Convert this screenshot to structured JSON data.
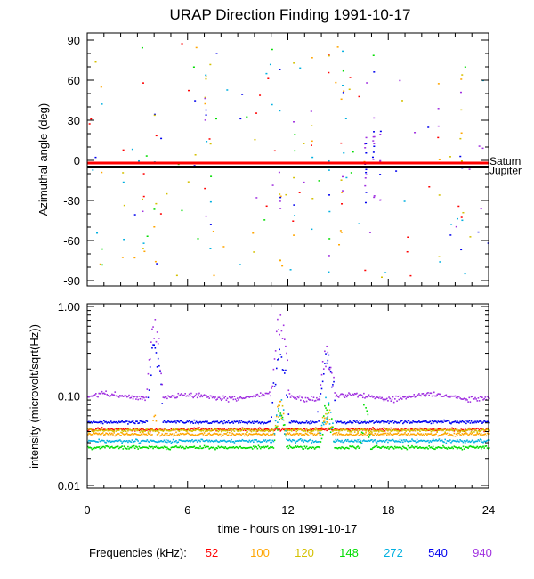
{
  "chart_data": [
    {
      "type": "scatter",
      "title": "URAP Direction Finding  1991-10-17",
      "ylabel": "Azimuthal angle (deg)",
      "xlabel": "",
      "xlim": [
        0,
        24
      ],
      "ylim": [
        -95,
        95
      ],
      "y_ticks": [
        "90",
        "60",
        "30",
        "0",
        "-30",
        "-60",
        "-90"
      ],
      "reference_lines": [
        {
          "name": "Saturn",
          "y": -2,
          "color": "#ff0000"
        },
        {
          "name": "Jupiter",
          "y": -5,
          "color": "#000000"
        }
      ],
      "clusters_hours": [
        0.8,
        2.1,
        3.3,
        4.0,
        7.0,
        7.3,
        11.5,
        12.3,
        13.4,
        14.4,
        15.2,
        16.6,
        17.1,
        17.5,
        21.0,
        22.3
      ]
    },
    {
      "type": "scatter",
      "ylabel": "intensity (microvolt/sqrt(Hz))",
      "xlabel": "time - hours on 1991-10-17",
      "xlim": [
        0,
        24
      ],
      "ylim": [
        0.01,
        1.0
      ],
      "yscale": "log",
      "x_ticks": [
        "0",
        "6",
        "12",
        "18",
        "24"
      ],
      "y_ticks": [
        "1.00",
        "0.10",
        "0.01"
      ],
      "series": [
        {
          "name": "52",
          "color": "#ff0000",
          "baseline": 0.043
        },
        {
          "name": "100",
          "color": "#ffa500",
          "baseline": 0.038
        },
        {
          "name": "120",
          "color": "#d4c000",
          "baseline": 0.042
        },
        {
          "name": "148",
          "color": "#00dd00",
          "baseline": 0.027
        },
        {
          "name": "272",
          "color": "#00b0e0",
          "baseline": 0.032
        },
        {
          "name": "540",
          "color": "#0000ee",
          "baseline": 0.052
        },
        {
          "name": "940",
          "color": "#a030e0",
          "baseline": 0.1
        }
      ],
      "bursts": [
        {
          "center": 4.0,
          "width": 0.35,
          "peaks": [
            0.0,
            0.05,
            0.0,
            0.0,
            0.0,
            0.35,
            0.6
          ]
        },
        {
          "center": 11.5,
          "width": 0.4,
          "peaks": [
            0.0,
            0.07,
            0.07,
            0.06,
            0.08,
            0.3,
            0.7
          ]
        },
        {
          "center": 14.3,
          "width": 0.45,
          "peaks": [
            0.0,
            0.06,
            0.07,
            0.07,
            0.08,
            0.25,
            0.3
          ]
        },
        {
          "center": 16.6,
          "width": 0.3,
          "peaks": [
            0.0,
            0.0,
            0.0,
            0.07,
            0.0,
            0.0,
            0.0
          ]
        }
      ]
    }
  ],
  "legend": {
    "label": "Frequencies (kHz):",
    "items": [
      {
        "value": "52",
        "color": "#ff0000"
      },
      {
        "value": "100",
        "color": "#ffa500"
      },
      {
        "value": "120",
        "color": "#d4c000"
      },
      {
        "value": "148",
        "color": "#00dd00"
      },
      {
        "value": "272",
        "color": "#00b0e0"
      },
      {
        "value": "540",
        "color": "#0000ee"
      },
      {
        "value": "940",
        "color": "#a030e0"
      }
    ]
  }
}
